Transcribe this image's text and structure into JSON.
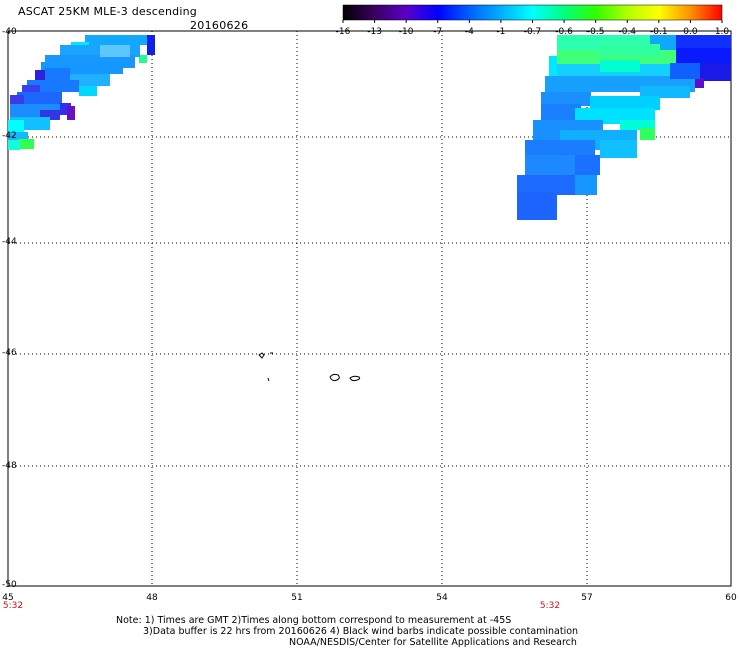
{
  "header": {
    "title": "ASCAT 25KM MLE-3 descending",
    "date": "20160626"
  },
  "colorbar": {
    "ticks": [
      "-16",
      "-13",
      "-10",
      "-7",
      "-4",
      "-1",
      "-0.7",
      "-0.6",
      "-0.5",
      "-0.4",
      "-0.1",
      "0.0",
      "1.0"
    ],
    "colors": [
      "#000000",
      "#3a0060",
      "#5a00c8",
      "#0000ff",
      "#0060ff",
      "#00b0ff",
      "#00ffff",
      "#00ff80",
      "#30ff00",
      "#b0ff00",
      "#ffff00",
      "#ff9000",
      "#ff0000"
    ]
  },
  "axes": {
    "lat_labels": [
      "-40",
      "-42",
      "-44",
      "-46",
      "-48",
      "-50"
    ],
    "lon_labels": [
      "45",
      "48",
      "51",
      "54",
      "57",
      "60"
    ],
    "time_labels": [
      "5:32",
      "5:32"
    ]
  },
  "notes": {
    "line1": "Note: 1) Times are GMT 2)Times along bottom correspond to measurement at -45S",
    "line2": "3)Data buffer is 22 hrs from 20160626 4) Black wind barbs indicate possible contamination",
    "line3": "NOAA/NESDIS/Center for Satellite Applications and Research"
  }
}
